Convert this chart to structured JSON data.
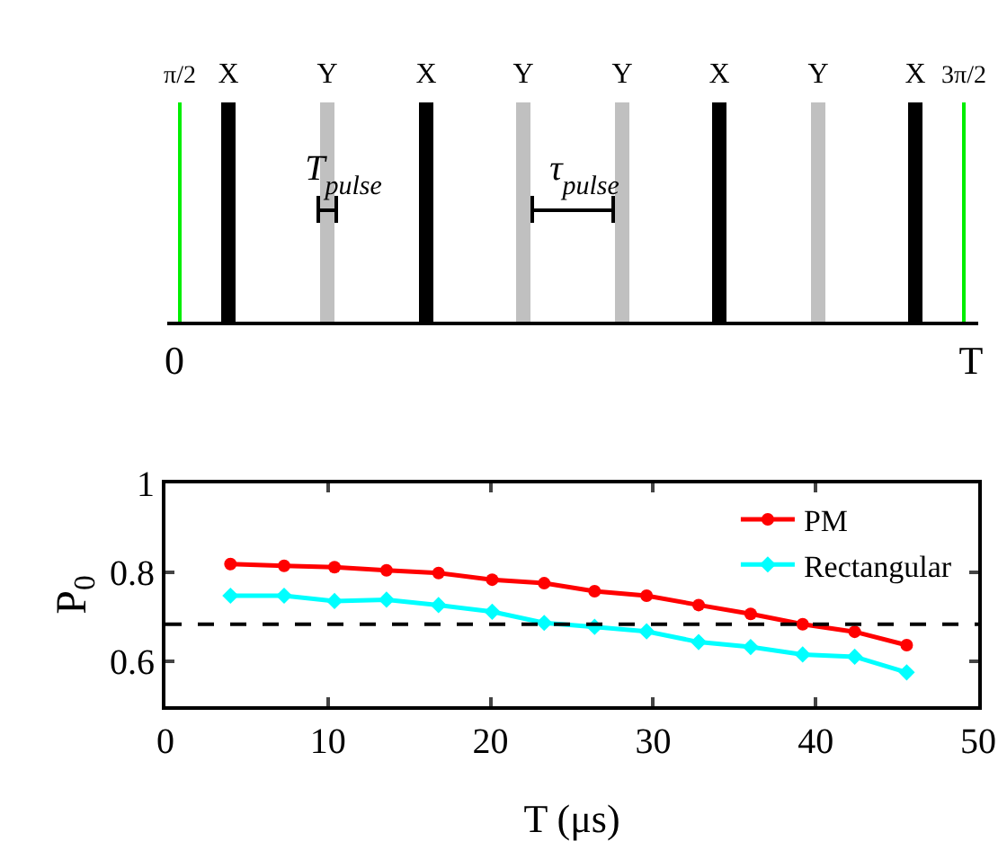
{
  "chart_data": [
    {
      "type": "other",
      "annotations": [
        "π/2",
        "X",
        "Y",
        "X",
        "Y",
        "Y",
        "X",
        "Y",
        "X",
        "3π/2",
        "T$_{pulse}$",
        "τ$_{pulse}$",
        "0",
        "T"
      ]
    },
    {
      "type": "line",
      "xlabel": "T (μs)",
      "ylabel": "P$_{0}$",
      "x": [
        4.0,
        7.3,
        10.4,
        13.6,
        16.8,
        20.1,
        23.3,
        26.4,
        29.6,
        32.8,
        36.0,
        39.2,
        42.4,
        45.6
      ],
      "series": [
        {
          "name": "PM",
          "color": "#ff0000",
          "marker": "circle",
          "values": [
            0.819,
            0.815,
            0.812,
            0.805,
            0.799,
            0.784,
            0.776,
            0.758,
            0.748,
            0.727,
            0.707,
            0.684,
            0.667,
            0.637
          ]
        },
        {
          "name": "Rectangular",
          "color": "#00ffff",
          "marker": "diamond",
          "values": [
            0.748,
            0.748,
            0.736,
            0.739,
            0.727,
            0.712,
            0.687,
            0.678,
            0.668,
            0.644,
            0.633,
            0.616,
            0.611,
            0.576
          ]
        }
      ],
      "xlim": [
        0,
        50
      ],
      "xticks": [
        0,
        10,
        20,
        30,
        40,
        50
      ],
      "ylim": [
        0.5,
        1
      ],
      "yticks": [
        0.6,
        0.8,
        1
      ],
      "ref_lines": [
        {
          "axis": "y",
          "value": 0.684,
          "color": "#000000",
          "line_style": "dashed"
        }
      ],
      "grid": false,
      "legend": "top right",
      "line_style": "solid"
    }
  ]
}
